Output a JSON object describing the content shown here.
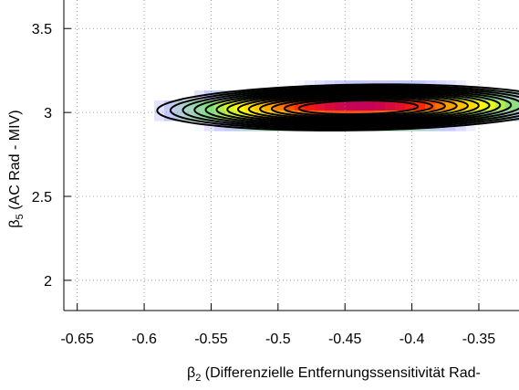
{
  "chart_data": {
    "type": "heatmap",
    "title": "",
    "xlabel_symbol": "β",
    "xlabel_sub": "2",
    "xlabel_text": " (Differenzielle Entfernungssensitivität Rad-",
    "ylabel_symbol": "β",
    "ylabel_sub": "5",
    "ylabel_text": " (AC Rad - MIV)",
    "xlim": [
      -0.66,
      -0.32
    ],
    "ylim": [
      1.82,
      3.67
    ],
    "x_ticks": [
      -0.65,
      -0.6,
      -0.55,
      -0.5,
      -0.45,
      -0.4,
      -0.35
    ],
    "x_tick_labels": [
      "-0.65",
      "-0.6",
      "-0.55",
      "-0.5",
      "-0.45",
      "-0.4",
      "-0.35"
    ],
    "y_ticks": [
      2.0,
      2.5,
      3.0,
      3.5
    ],
    "y_tick_labels": [
      "2",
      "2.5",
      "3",
      "3.5"
    ],
    "grid": true,
    "surface": {
      "center": [
        -0.44,
        3.03
      ],
      "major_axis_slope": -1.86,
      "colormap": [
        "#c8c8ff",
        "#80e080",
        "#ffff00",
        "#ffb000",
        "#ff2000",
        "#c00060"
      ]
    },
    "contour_levels": [
      0.9,
      0.85,
      0.8,
      0.75,
      0.7,
      0.65,
      0.6,
      0.55,
      0.5,
      0.45,
      0.4,
      0.35,
      0.3
    ],
    "contour_color": "#000000"
  }
}
